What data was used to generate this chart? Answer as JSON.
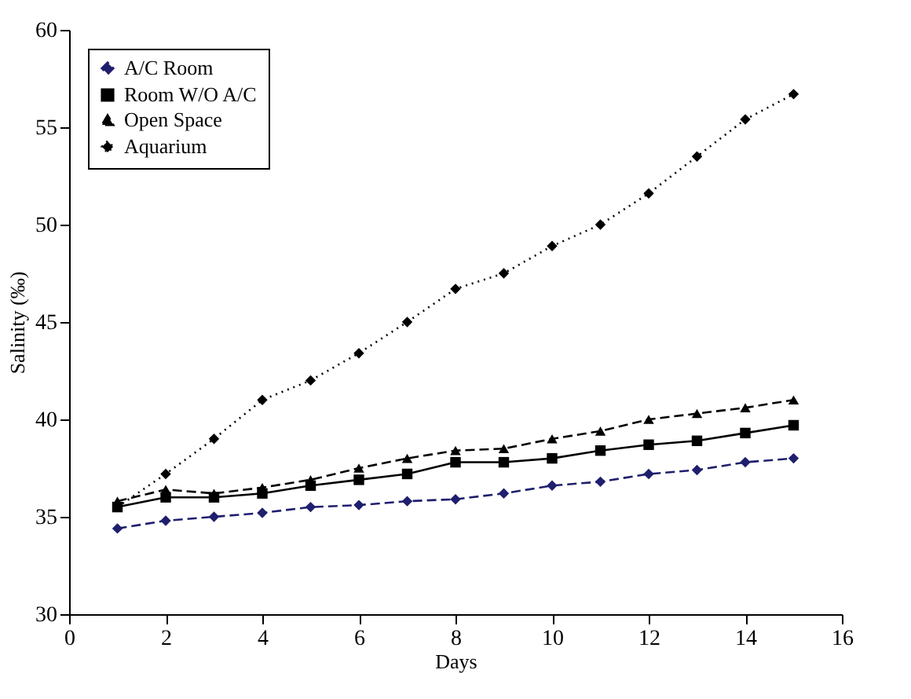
{
  "chart_data": {
    "type": "line",
    "xlabel": "Days",
    "ylabel": "Salinity (‰)",
    "x": [
      1,
      2,
      3,
      4,
      5,
      6,
      7,
      8,
      9,
      10,
      11,
      12,
      13,
      14,
      15
    ],
    "series": [
      {
        "name": "A/C Room",
        "color": "#1f1f6e",
        "marker": "diamond",
        "line_style": "dashed",
        "values": [
          34.4,
          34.8,
          35.0,
          35.2,
          35.5,
          35.6,
          35.8,
          35.9,
          36.2,
          36.6,
          36.8,
          37.2,
          37.4,
          37.8,
          38.0
        ]
      },
      {
        "name": "Room W/O A/C",
        "color": "#000000",
        "marker": "square",
        "line_style": "solid",
        "values": [
          35.5,
          36.0,
          36.0,
          36.2,
          36.6,
          36.9,
          37.2,
          37.8,
          37.8,
          38.0,
          38.4,
          38.7,
          38.9,
          39.3,
          39.7
        ]
      },
      {
        "name": "Open Space",
        "color": "#000000",
        "marker": "triangle",
        "line_style": "dashed",
        "values": [
          35.8,
          36.4,
          36.2,
          36.5,
          36.9,
          37.5,
          38.0,
          38.4,
          38.5,
          39.0,
          39.4,
          40.0,
          40.3,
          40.6,
          41.0
        ]
      },
      {
        "name": "Aquarium",
        "color": "#000000",
        "marker": "diamond",
        "line_style": "dotted",
        "values": [
          35.5,
          37.2,
          39.0,
          41.0,
          42.0,
          43.4,
          45.0,
          46.7,
          47.5,
          48.9,
          50.0,
          51.6,
          53.5,
          55.4,
          56.7
        ]
      }
    ],
    "xlim": [
      0,
      16
    ],
    "xticks": [
      0,
      2,
      4,
      6,
      8,
      10,
      12,
      14,
      16
    ],
    "ylim": [
      30,
      60
    ],
    "yticks": [
      30,
      35,
      40,
      45,
      50,
      55,
      60
    ],
    "grid": false,
    "legend": "top left"
  }
}
